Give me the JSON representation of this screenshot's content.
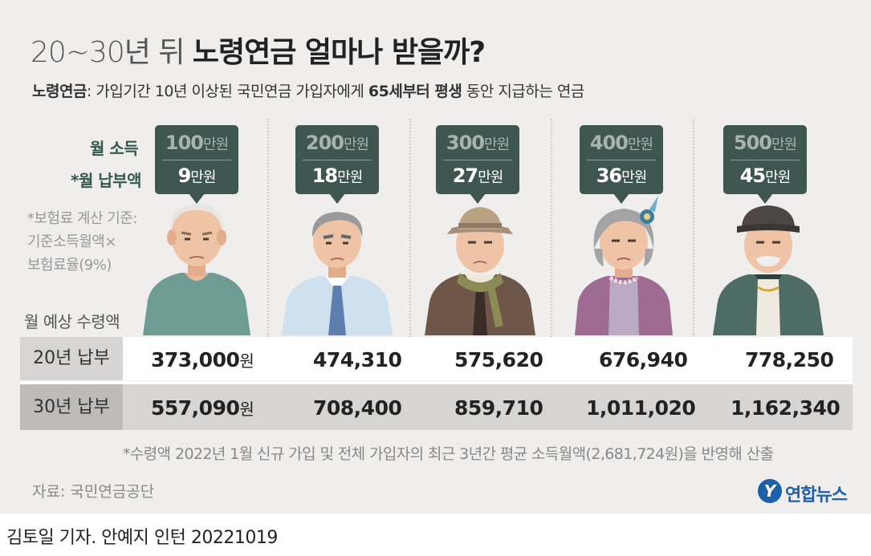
{
  "title_light": "20~30년 뒤",
  "title_bold": "노령연금 얼마나 받을까?",
  "subtitle": {
    "term": "노령연금",
    "part1": ": 가입기간 10년 이상된 국민연금 가입자에게 ",
    "emph": "65세부터 평생",
    "part2": " 동안 지급하는 연금"
  },
  "labels": {
    "income": "월 소득",
    "payment": "*월 납부액",
    "section": "월 예상 수령액"
  },
  "note_lines": [
    "*보험료 계산 기준:",
    "기준소득월액×",
    "보험료율(9%)"
  ],
  "unit_manwon": "만원",
  "unit_won": "원",
  "chart_data": {
    "type": "table",
    "columns": [
      {
        "income": "100",
        "payment": "9"
      },
      {
        "income": "200",
        "payment": "18"
      },
      {
        "income": "300",
        "payment": "27"
      },
      {
        "income": "400",
        "payment": "36"
      },
      {
        "income": "500",
        "payment": "45"
      }
    ],
    "rows": [
      {
        "label": "20년 납부",
        "values": [
          "373,000",
          "474,310",
          "575,620",
          "676,940",
          "778,250"
        ]
      },
      {
        "label": "30년 납부",
        "values": [
          "557,090",
          "708,400",
          "859,710",
          "1,011,020",
          "1,162,340"
        ]
      }
    ]
  },
  "footnote": "*수령액 2022년 1월 신규 가입 및 전체 가입자의 최근 3년간 평균 소득월액(2,681,724원)을 반영해 산출",
  "source": "자료: 국민연금공단",
  "logo": {
    "mark": "Y",
    "text": "연합뉴스"
  },
  "credit": "김토일 기자. 안예지 인턴  20221019",
  "colors": {
    "bubble": "#3f5650",
    "label_green": "#34574f",
    "background": "#efeeec",
    "row_header": "#d6d5d3"
  }
}
